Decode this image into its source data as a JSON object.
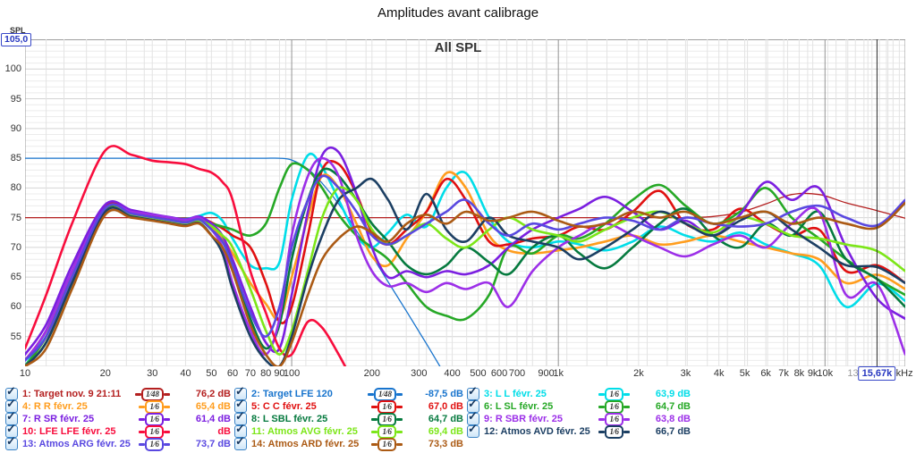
{
  "page_title": "Amplitudes avant calibrage",
  "chart": {
    "title": "All SPL",
    "y_axis": {
      "label": "SPL",
      "max_readout": "105,0",
      "tick_labels": [
        100,
        95,
        90,
        85,
        80,
        75,
        70,
        65,
        60,
        55
      ]
    },
    "x_axis": {
      "tick_labels": [
        {
          "f": 10,
          "label": "10"
        },
        {
          "f": 20,
          "label": "20"
        },
        {
          "f": 30,
          "label": "30"
        },
        {
          "f": 40,
          "label": "40"
        },
        {
          "f": 50,
          "label": "50"
        },
        {
          "f": 60,
          "label": "60"
        },
        {
          "f": 70,
          "label": "70"
        },
        {
          "f": 80,
          "label": "80"
        },
        {
          "f": 90,
          "label": "90"
        },
        {
          "f": 100,
          "label": "100"
        },
        {
          "f": 200,
          "label": "200"
        },
        {
          "f": 300,
          "label": "300"
        },
        {
          "f": 400,
          "label": "400"
        },
        {
          "f": 500,
          "label": "500"
        },
        {
          "f": 600,
          "label": "600"
        },
        {
          "f": 700,
          "label": "700"
        },
        {
          "f": 900,
          "label": "900"
        },
        {
          "f": 1000,
          "label": "1k"
        },
        {
          "f": 2000,
          "label": "2k"
        },
        {
          "f": 3000,
          "label": "3k"
        },
        {
          "f": 4000,
          "label": "4k"
        },
        {
          "f": 5000,
          "label": "5k"
        },
        {
          "f": 6000,
          "label": "6k"
        },
        {
          "f": 7000,
          "label": "7k"
        },
        {
          "f": 8000,
          "label": "8k"
        },
        {
          "f": 9000,
          "label": "9k"
        },
        {
          "f": 10000,
          "label": "10k"
        },
        {
          "f": 13000,
          "label": "13k",
          "muted": true
        },
        {
          "f": 20000,
          "label": "20kHz",
          "dx": -7
        }
      ],
      "cursor_readout": "15,67k",
      "cursor_freq": 15670
    }
  },
  "chart_data": {
    "type": "line",
    "x_scale": "log",
    "xlim": [
      10,
      20000
    ],
    "ylim": [
      50,
      105
    ],
    "grid": true,
    "freqs": [
      10,
      12,
      15,
      20,
      25,
      30,
      35,
      40,
      45,
      50,
      55,
      60,
      70,
      80,
      90,
      100,
      115,
      130,
      150,
      175,
      200,
      230,
      270,
      320,
      380,
      450,
      550,
      650,
      800,
      1000,
      1200,
      1500,
      1900,
      2400,
      3000,
      3800,
      4800,
      6000,
      7500,
      9500,
      12000,
      15670,
      20000
    ],
    "series": [
      {
        "id": 1,
        "name": "Target nov. 9 21:11",
        "color": "#b42020",
        "width": 1.3,
        "values": [
          75,
          75,
          75,
          75,
          75,
          75,
          75,
          75,
          75,
          75,
          75,
          75,
          75,
          75,
          75,
          75,
          75,
          75,
          75,
          75,
          75,
          75,
          75,
          75,
          75,
          75,
          75,
          75,
          75,
          75,
          75,
          75,
          75,
          75,
          75,
          75.2,
          75.9,
          77.3,
          78.9,
          78.9,
          77.5,
          76.2,
          74.9
        ]
      },
      {
        "id": 2,
        "name": "Target LFE 120",
        "color": "#1874cd",
        "width": 1.3,
        "values": [
          85,
          85,
          85,
          85,
          85,
          85,
          85,
          85,
          85,
          85,
          85,
          85,
          85,
          85,
          85,
          84.7,
          83.2,
          80.8,
          77.3,
          72.8,
          68.6,
          64.2,
          59.2,
          53.8,
          48.2,
          null,
          null,
          null,
          null,
          null,
          null,
          null,
          null,
          null,
          null,
          null,
          null,
          null,
          null,
          null,
          null,
          null,
          null
        ]
      },
      {
        "id": 3,
        "name": "L L févr. 25",
        "color": "#00dde8",
        "width": 2.6,
        "values": [
          50,
          56,
          66,
          77,
          76.2,
          75.4,
          75,
          74.8,
          75.3,
          75.8,
          74.5,
          71.5,
          67,
          66.5,
          67.5,
          78,
          85.5,
          83.5,
          78,
          72,
          70,
          72.5,
          75.5,
          73.5,
          80,
          82.5,
          75,
          71,
          70,
          71,
          70.5,
          69.5,
          71,
          73.5,
          72,
          71,
          72.5,
          70.5,
          69,
          67,
          60,
          63.9,
          61
        ]
      },
      {
        "id": 4,
        "name": "R R févr. 25",
        "color": "#ff9d1e",
        "width": 2.6,
        "values": [
          50,
          55,
          65,
          76.5,
          75.8,
          75.2,
          74.7,
          74.3,
          74.8,
          73.5,
          71.5,
          69,
          64,
          60.5,
          58,
          65,
          75,
          82,
          80,
          74,
          68.5,
          67,
          71.5,
          76,
          82.5,
          80,
          72,
          69.5,
          69,
          69.5,
          70,
          71,
          72,
          70.5,
          71,
          72,
          71,
          70,
          69,
          68,
          64,
          65.4,
          63
        ]
      },
      {
        "id": 5,
        "name": "C C févr. 25",
        "color": "#e01010",
        "width": 2.6,
        "values": [
          51,
          56,
          66,
          77,
          76.2,
          75.3,
          74.8,
          74.6,
          75,
          74.2,
          73.2,
          72,
          70,
          64,
          57.5,
          60,
          72,
          83,
          84,
          79,
          72.5,
          70.5,
          73,
          76,
          81.5,
          78,
          71,
          70.5,
          71.5,
          72,
          73.5,
          73,
          76,
          79.5,
          74,
          73,
          76.5,
          74,
          72,
          73,
          66,
          67,
          64
        ]
      },
      {
        "id": 6,
        "name": "L SL févr. 25",
        "color": "#26a826",
        "width": 2.6,
        "values": [
          50,
          55,
          65,
          76.4,
          75.6,
          75,
          74.6,
          74.2,
          74.6,
          74,
          73.5,
          73,
          72,
          74,
          80,
          84,
          83,
          80,
          75.5,
          72,
          70,
          68,
          64,
          60,
          58.5,
          58,
          62,
          70,
          69,
          72,
          71.5,
          74,
          78,
          80.5,
          77,
          74,
          76,
          80,
          75,
          71.5,
          68,
          64.7,
          62
        ]
      },
      {
        "id": 7,
        "name": "R SR févr. 25",
        "color": "#7b1fe0",
        "width": 2.6,
        "values": [
          52,
          57,
          67,
          77.2,
          76.3,
          75.6,
          75.1,
          74.7,
          75.2,
          74,
          72,
          68,
          60,
          54,
          53,
          62,
          76,
          85.5,
          86,
          79,
          70,
          65,
          66,
          65,
          66,
          65.5,
          67,
          70,
          73,
          75,
          76.5,
          78.5,
          76,
          73,
          74.5,
          72,
          75.5,
          81,
          78,
          80,
          70,
          61.4,
          58
        ]
      },
      {
        "id": 8,
        "name": "L SBL févr. 25",
        "color": "#067a3f",
        "width": 2.6,
        "values": [
          50,
          54,
          64,
          76,
          75.6,
          75,
          74.5,
          74.1,
          74.6,
          73,
          71,
          67,
          58,
          53,
          57,
          68,
          78,
          83,
          82,
          78,
          74,
          71,
          67,
          65.5,
          67,
          70,
          67.5,
          65.5,
          70,
          72,
          69,
          66.5,
          70,
          74,
          76.5,
          72,
          70,
          74,
          72,
          76,
          68,
          64.7,
          60
        ]
      },
      {
        "id": 9,
        "name": "R SBR févr. 25",
        "color": "#9c2fe8",
        "width": 2.6,
        "values": [
          51,
          56,
          66,
          76.6,
          76,
          75.5,
          75,
          74.6,
          75,
          73,
          70,
          64,
          56,
          52,
          58,
          72,
          82,
          85,
          82,
          72,
          66,
          63.5,
          64,
          62.5,
          64,
          63,
          64,
          60,
          66,
          70,
          72,
          74,
          72,
          70,
          68.5,
          70.5,
          72,
          70,
          74,
          76,
          62,
          63.8,
          52
        ]
      },
      {
        "id": 10,
        "name": "LFE LFE févr. 25",
        "color": "#f80d3d",
        "width": 2.6,
        "values": [
          53,
          62,
          74,
          86.3,
          85.6,
          84.6,
          84.3,
          84,
          83.2,
          82.6,
          81,
          78,
          66,
          59,
          53,
          52,
          57.5,
          56.5,
          52,
          46.5,
          43,
          null,
          null,
          null,
          null,
          null,
          null,
          null,
          null,
          null,
          null,
          null,
          null,
          null,
          null,
          null,
          null,
          null,
          null,
          null,
          null,
          null,
          null
        ]
      },
      {
        "id": 11,
        "name": "Atmos AVG févr. 25",
        "color": "#7ce618",
        "width": 2.6,
        "values": [
          50,
          54,
          64,
          76,
          75.5,
          75,
          74.5,
          74.1,
          74.5,
          73.6,
          72,
          70,
          63,
          56,
          52,
          56,
          66,
          75,
          80,
          78,
          73,
          70.5,
          72,
          74,
          71.5,
          70,
          73,
          75,
          73,
          72,
          71,
          73,
          75,
          76,
          74,
          72.5,
          75,
          74,
          72,
          71.5,
          70.5,
          69.4,
          66
        ]
      },
      {
        "id": 12,
        "name": "Atmos AVD févr. 25",
        "color": "#1c3f63",
        "width": 2.6,
        "values": [
          50,
          54,
          64,
          76,
          75.2,
          74.6,
          74.1,
          73.7,
          74.1,
          72,
          69,
          63,
          55,
          51,
          50,
          55,
          65,
          72,
          78,
          80,
          81.5,
          78,
          73,
          79,
          73,
          71,
          75,
          72,
          71,
          70,
          68,
          70,
          73,
          76,
          74,
          72,
          74.5,
          76,
          73,
          70,
          67,
          66.7,
          64
        ]
      },
      {
        "id": 13,
        "name": "Atmos ARG févr. 25",
        "color": "#5948e0",
        "width": 2.6,
        "values": [
          51,
          55,
          65,
          76.6,
          75.7,
          75.1,
          74.6,
          74.2,
          74.7,
          73,
          71,
          67,
          59,
          55,
          60,
          70,
          78,
          82,
          80,
          76,
          72,
          70.5,
          72,
          74,
          76,
          78,
          74,
          72,
          74,
          73,
          74,
          75,
          74.5,
          73,
          75,
          74,
          73.5,
          74,
          76,
          77,
          75,
          73.7,
          78
        ]
      },
      {
        "id": 14,
        "name": "Atmos ARD févr. 25",
        "color": "#ab5a14",
        "width": 2.6,
        "values": [
          50,
          53,
          63,
          75.5,
          75,
          74.5,
          74,
          73.6,
          74,
          72,
          70,
          66,
          57,
          52,
          50,
          54,
          62,
          68,
          71.5,
          73.5,
          72.5,
          71,
          74,
          75.5,
          74,
          76,
          74.5,
          75,
          76,
          74.5,
          73.5,
          74,
          76,
          75,
          76,
          74,
          75,
          76,
          74,
          75,
          74,
          73.3,
          77.5
        ]
      }
    ]
  },
  "legend": {
    "items": [
      {
        "label": "1: Target nov. 9 21:11",
        "smoothing": "1⁄48",
        "value": "76,2 dB",
        "color": "#b42020",
        "checked": true
      },
      {
        "label": "2: Target LFE 120",
        "smoothing": "1⁄48",
        "value": "-87,5 dB",
        "color": "#1874cd",
        "checked": true
      },
      {
        "label": "3: L L févr. 25",
        "smoothing": "1⁄6",
        "value": "63,9 dB",
        "color": "#00dde8",
        "checked": true
      },
      {
        "label": "4: R R févr. 25",
        "smoothing": "1⁄6",
        "value": "65,4 dB",
        "color": "#ff9d1e",
        "checked": true
      },
      {
        "label": "5: C C févr. 25",
        "smoothing": "1⁄6",
        "value": "67,0 dB",
        "color": "#e01010",
        "checked": true
      },
      {
        "label": "6: L SL févr. 25",
        "smoothing": "1⁄6",
        "value": "64,7 dB",
        "color": "#26a826",
        "checked": true
      },
      {
        "label": "7: R SR févr. 25",
        "smoothing": "1⁄6",
        "value": "61,4 dB",
        "color": "#7b1fe0",
        "checked": true
      },
      {
        "label": "8: L SBL févr. 25",
        "smoothing": "1⁄6",
        "value": "64,7 dB",
        "color": "#067a3f",
        "checked": true
      },
      {
        "label": "9: R SBR févr. 25",
        "smoothing": "1⁄6",
        "value": "63,8 dB",
        "color": "#9c2fe8",
        "checked": true
      },
      {
        "label": "10: LFE LFE févr. 25",
        "smoothing": "1⁄6",
        "value": "dB",
        "color": "#f80d3d",
        "checked": true
      },
      {
        "label": "11: Atmos AVG févr. 25",
        "smoothing": "1⁄6",
        "value": "69,4 dB",
        "color": "#7ce618",
        "checked": true
      },
      {
        "label": "12: Atmos AVD févr. 25",
        "smoothing": "1⁄6",
        "value": "66,7 dB",
        "color": "#1c3f63",
        "checked": true
      },
      {
        "label": "13: Atmos ARG févr. 25",
        "smoothing": "1⁄6",
        "value": "73,7 dB",
        "color": "#5948e0",
        "checked": true
      },
      {
        "label": "14: Atmos ARD févr. 25",
        "smoothing": "1⁄6",
        "value": "73,3 dB",
        "color": "#ab5a14",
        "checked": true
      }
    ]
  }
}
